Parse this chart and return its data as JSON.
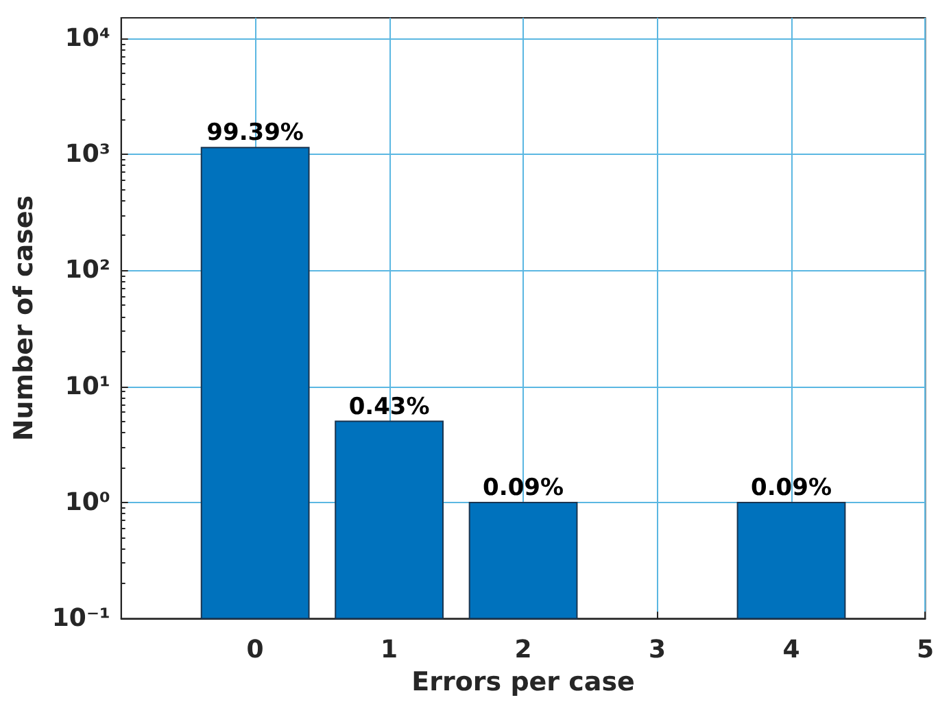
{
  "chart_data": {
    "type": "bar",
    "xlabel": "Errors per case",
    "ylabel": "Number of cases",
    "x": [
      0,
      1,
      2,
      4
    ],
    "values": [
      1143,
      5,
      1,
      1
    ],
    "annotations": [
      {
        "text": "99.39%",
        "x": 0,
        "y": 1143
      },
      {
        "text": "0.43%",
        "x": 1,
        "y": 5
      },
      {
        "text": "0.09%",
        "x": 2,
        "y": 1
      },
      {
        "text": "0.09%",
        "x": 4,
        "y": 1
      }
    ],
    "color": "#0072bd",
    "xlim": [
      -1,
      5
    ],
    "xticks": [
      0,
      1,
      2,
      3,
      4,
      5
    ],
    "ylim": [
      0.1,
      15000
    ],
    "yticks": [
      {
        "value": 0.1,
        "label": "10⁻¹"
      },
      {
        "value": 1,
        "label": "10⁰"
      },
      {
        "value": 10,
        "label": "10¹"
      },
      {
        "value": 100,
        "label": "10²"
      },
      {
        "value": 1000,
        "label": "10³"
      },
      {
        "value": 10000,
        "label": "10⁴"
      }
    ],
    "log": "y",
    "grid": true
  }
}
